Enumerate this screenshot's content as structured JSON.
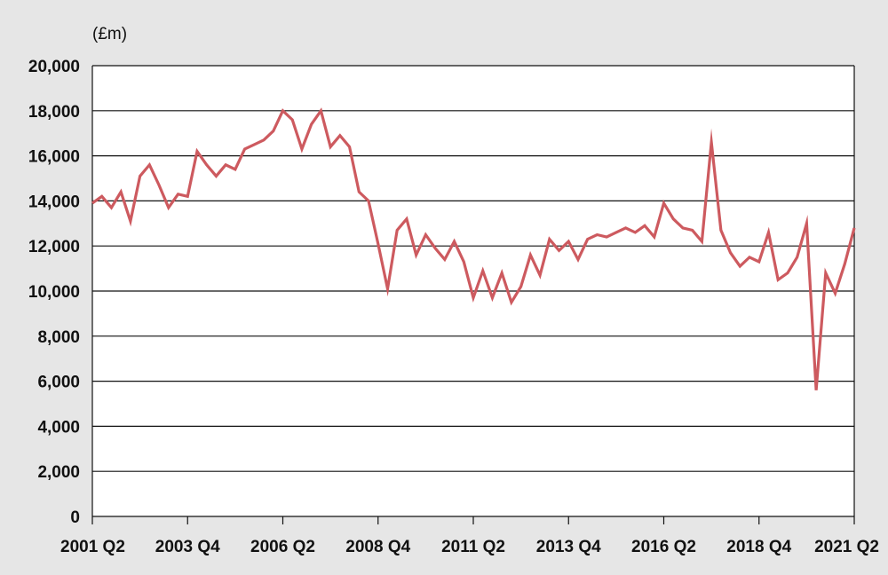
{
  "chart_data": {
    "type": "line",
    "ylabel": "(£m)",
    "ylim": [
      0,
      20000
    ],
    "yticks": [
      0,
      2000,
      4000,
      6000,
      8000,
      10000,
      12000,
      14000,
      16000,
      18000,
      20000
    ],
    "ytick_labels": [
      "0",
      "2,000",
      "4,000",
      "6,000",
      "8,000",
      "10,000",
      "12,000",
      "14,000",
      "16,000",
      "18,000",
      "20,000"
    ],
    "xtick_labels": [
      "2001 Q2",
      "2003 Q4",
      "2006 Q2",
      "2008 Q4",
      "2011 Q2",
      "2013 Q4",
      "2016 Q2",
      "2018 Q4",
      "2021 Q2"
    ],
    "grid": true,
    "colors": {
      "line": "#cd5a5f",
      "grid": "#111111",
      "background": "#e6e6e6",
      "plot_area": "#ffffff"
    },
    "series": [
      {
        "values": [
          13900,
          14200,
          13700,
          14400,
          13100,
          15100,
          15600,
          14700,
          13700,
          14300,
          14200,
          16200,
          15600,
          15100,
          15600,
          15400,
          16300,
          16500,
          16700,
          17100,
          18000,
          17600,
          16300,
          17400,
          18000,
          16400,
          16900,
          16400,
          14400,
          14000,
          12100,
          10100,
          12700,
          13200,
          11600,
          12500,
          11900,
          11400,
          12200,
          11300,
          9700,
          10900,
          9700,
          10800,
          9500,
          10200,
          11600,
          10700,
          12300,
          11800,
          12200,
          11400,
          12300,
          12500,
          12400,
          12600,
          12800,
          12600,
          12900,
          12400,
          13900,
          13200,
          12800,
          12700,
          12200,
          16600,
          12700,
          11700,
          11100,
          11500,
          11300,
          12600,
          10500,
          10800,
          11500,
          13000,
          5600,
          10800,
          9900,
          11200,
          12800
        ]
      }
    ]
  }
}
